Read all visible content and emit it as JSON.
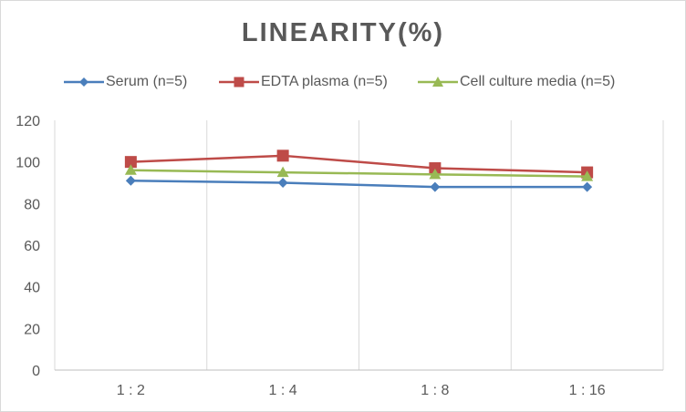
{
  "chart_data": {
    "type": "line",
    "title": "LINEARITY(%)",
    "xlabel": "",
    "ylabel": "",
    "categories": [
      "1:2",
      "1:4",
      "1:8",
      "1:16"
    ],
    "ylim": [
      0,
      120
    ],
    "yticks": [
      0,
      20,
      40,
      60,
      80,
      100,
      120
    ],
    "grid": "vertical",
    "legend_position": "top",
    "series": [
      {
        "name": "Serum (n=5)",
        "values": [
          91,
          90,
          88,
          88
        ],
        "color": "#4a7ebb",
        "marker": "diamond"
      },
      {
        "name": "EDTA plasma (n=5)",
        "values": [
          100,
          103,
          97,
          95
        ],
        "color": "#be4b48",
        "marker": "square"
      },
      {
        "name": "Cell culture media (n=5)",
        "values": [
          96,
          95,
          94,
          93
        ],
        "color": "#98b954",
        "marker": "triangle"
      }
    ]
  }
}
